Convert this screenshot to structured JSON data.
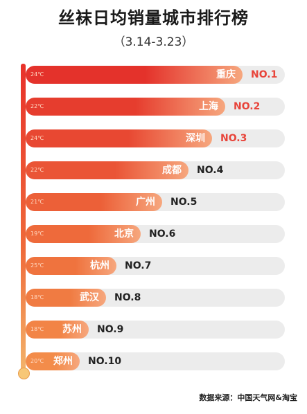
{
  "header": {
    "title": "丝袜日均销量城市排行榜",
    "subtitle": "（3.14-3.23）"
  },
  "chart_data": {
    "type": "bar",
    "title": "丝袜日均销量城市排行榜",
    "subtitle": "（3.14-3.23）",
    "orientation": "horizontal",
    "categories": [
      "重庆",
      "上海",
      "深圳",
      "成都",
      "广州",
      "北京",
      "杭州",
      "武汉",
      "苏州",
      "郑州"
    ],
    "ranks": [
      "NO.1",
      "NO.2",
      "NO.3",
      "NO.4",
      "NO.5",
      "NO.6",
      "NO.7",
      "NO.8",
      "NO.9",
      "NO.10"
    ],
    "temperatures": [
      "24℃",
      "22℃",
      "24℃",
      "22℃",
      "21℃",
      "19℃",
      "25℃",
      "18℃",
      "18℃",
      "20℃"
    ],
    "values": [
      100,
      92,
      86,
      75,
      63,
      53,
      42,
      37,
      29,
      25
    ],
    "ylim": [
      0,
      100
    ],
    "bar_colors": [
      "#e4322b",
      "#e63d2e",
      "#e84832",
      "#ea5536",
      "#ec6038",
      "#ee6a3b",
      "#ef733e",
      "#f07b42",
      "#f28446",
      "#f38c4a"
    ],
    "rank_colors": [
      "#e8443a",
      "#e8443a",
      "#e8443a",
      "#222222",
      "#222222",
      "#222222",
      "#222222",
      "#222222",
      "#222222",
      "#222222"
    ]
  },
  "footer": {
    "source": "数据来源：中国天气网&淘宝"
  }
}
